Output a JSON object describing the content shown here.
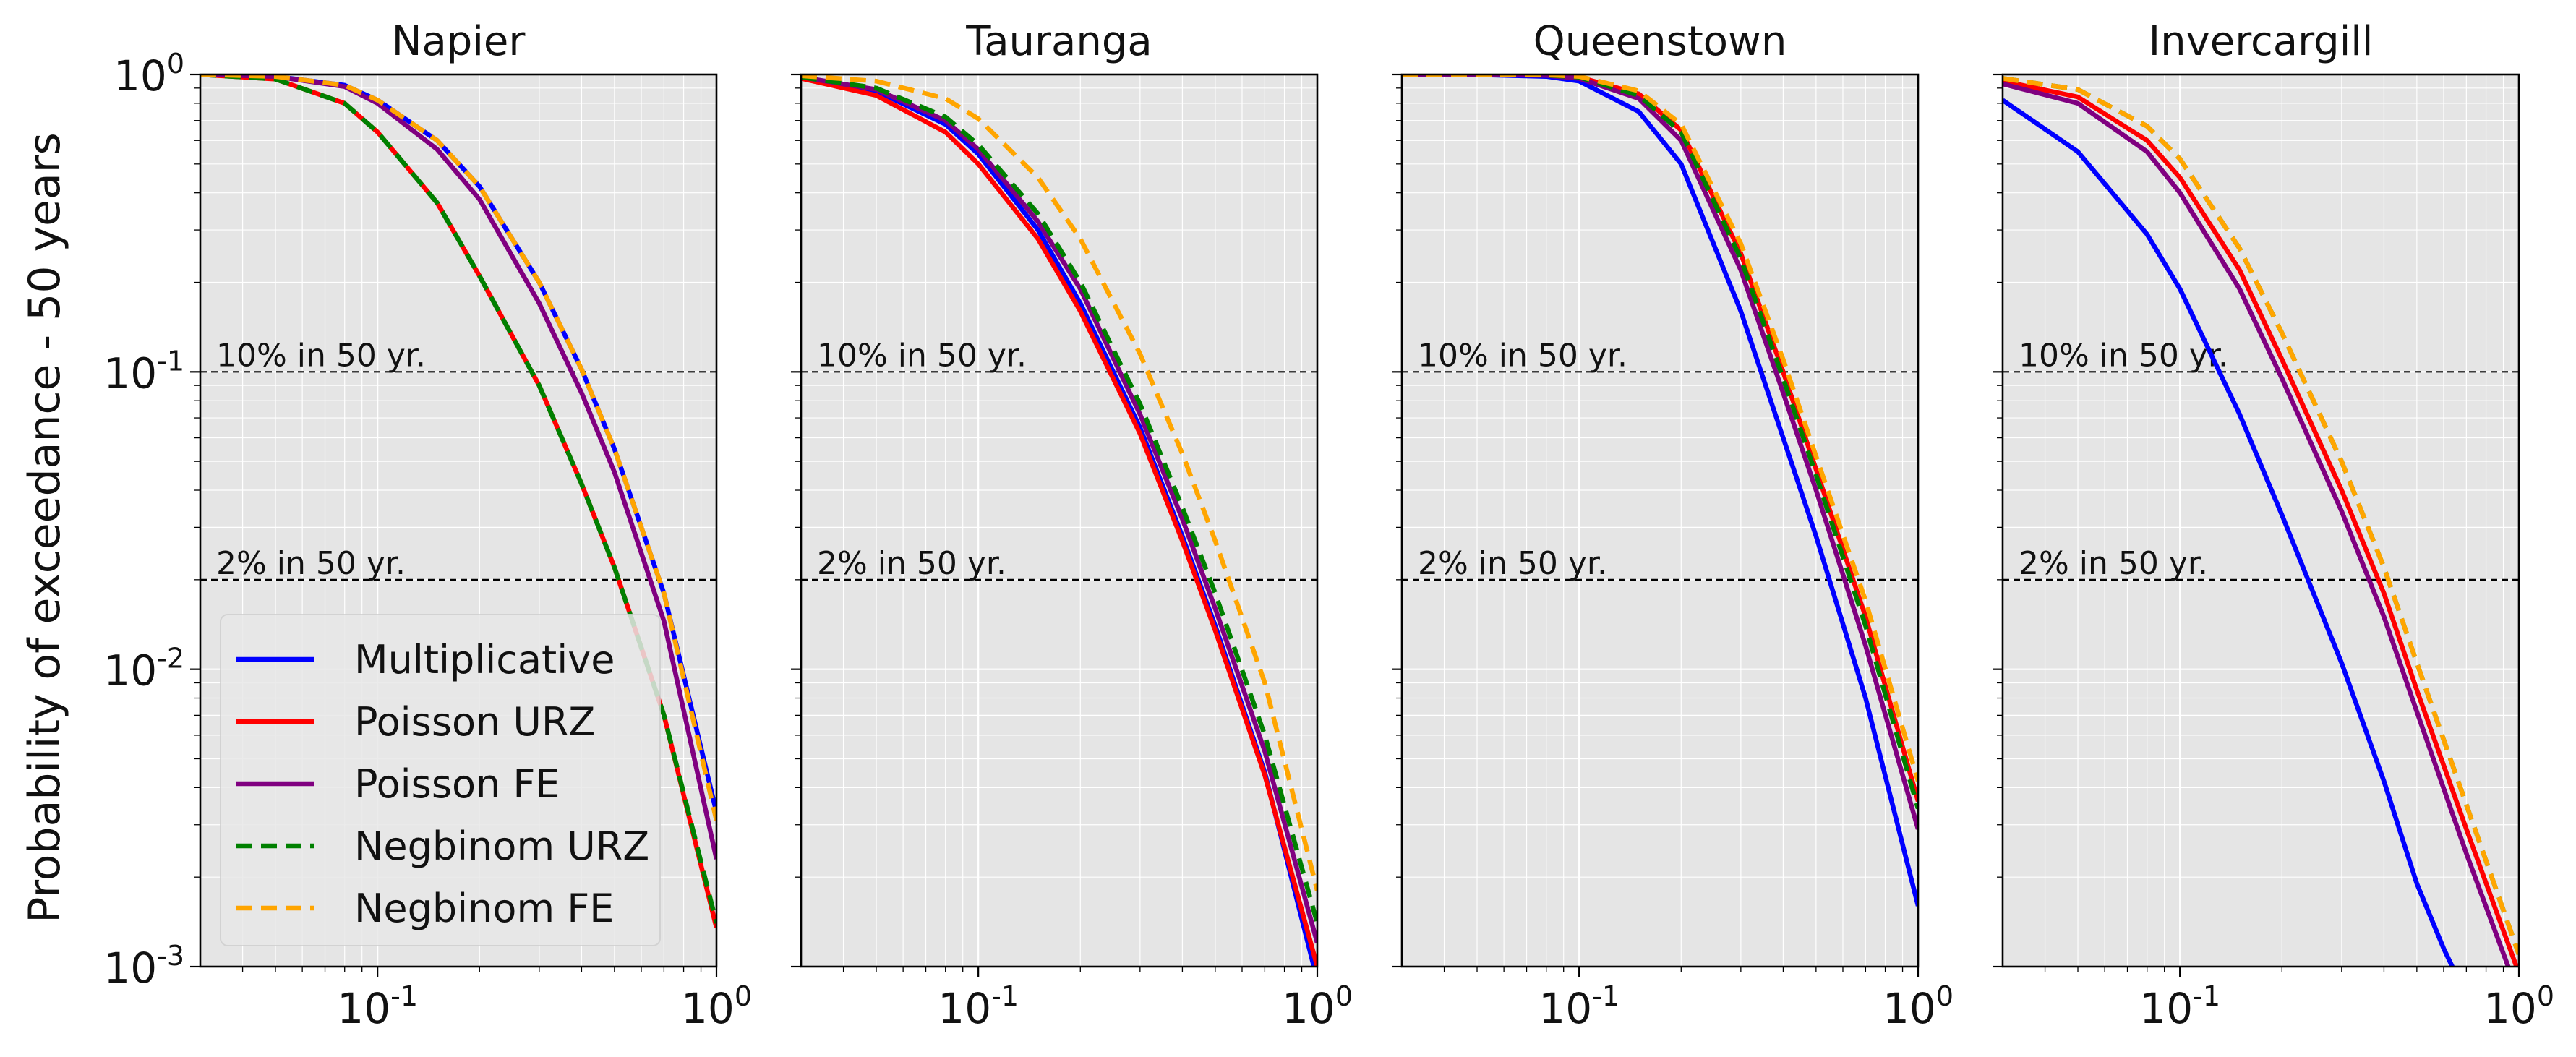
{
  "ylabel": "Probability of exceedance - 50 years",
  "colors": {
    "Multiplicative": "#0000ff",
    "Poisson URZ": "#ff0000",
    "Poisson FE": "#800080",
    "Negbinom URZ": "#008000",
    "Negbinom FE": "#ffa500"
  },
  "legend": [
    {
      "name": "Multiplicative",
      "dashed": false
    },
    {
      "name": "Poisson URZ",
      "dashed": false
    },
    {
      "name": "Poisson FE",
      "dashed": false
    },
    {
      "name": "Negbinom URZ",
      "dashed": true
    },
    {
      "name": "Negbinom FE",
      "dashed": true
    }
  ],
  "chart_data": [
    {
      "type": "line",
      "title": "Napier",
      "xscale": "log",
      "yscale": "log",
      "xlim": [
        0.03,
        1.0
      ],
      "ylim": [
        0.001,
        1.0
      ],
      "reference_lines": [
        {
          "y": 0.1,
          "label": "10% in 50 yr."
        },
        {
          "y": 0.02,
          "label": "2% in 50 yr."
        }
      ],
      "legend_location": "lower-left",
      "series": [
        {
          "name": "Multiplicative",
          "x": [
            0.03,
            0.05,
            0.08,
            0.1,
            0.15,
            0.2,
            0.3,
            0.4,
            0.5,
            0.7,
            1.0
          ],
          "y": [
            1.0,
            0.985,
            0.92,
            0.82,
            0.6,
            0.42,
            0.2,
            0.102,
            0.055,
            0.018,
            0.0033
          ]
        },
        {
          "name": "Poisson URZ",
          "x": [
            0.03,
            0.05,
            0.08,
            0.1,
            0.15,
            0.2,
            0.3,
            0.4,
            0.5,
            0.7,
            1.0
          ],
          "y": [
            1.0,
            0.965,
            0.8,
            0.64,
            0.37,
            0.21,
            0.09,
            0.042,
            0.022,
            0.007,
            0.00135
          ]
        },
        {
          "name": "Poisson FE",
          "x": [
            0.03,
            0.05,
            0.08,
            0.1,
            0.15,
            0.2,
            0.3,
            0.4,
            0.5,
            0.7,
            1.0
          ],
          "y": [
            1.0,
            0.985,
            0.91,
            0.8,
            0.56,
            0.38,
            0.17,
            0.085,
            0.046,
            0.0145,
            0.0023
          ]
        },
        {
          "name": "Negbinom URZ",
          "x": [
            0.03,
            0.05,
            0.08,
            0.1,
            0.15,
            0.2,
            0.3,
            0.4,
            0.5,
            0.7,
            1.0
          ],
          "y": [
            1.0,
            0.965,
            0.8,
            0.64,
            0.37,
            0.21,
            0.09,
            0.042,
            0.022,
            0.007,
            0.0014
          ]
        },
        {
          "name": "Negbinom FE",
          "x": [
            0.03,
            0.05,
            0.08,
            0.1,
            0.15,
            0.2,
            0.3,
            0.4,
            0.5,
            0.7,
            1.0
          ],
          "y": [
            1.0,
            0.985,
            0.92,
            0.82,
            0.6,
            0.42,
            0.2,
            0.102,
            0.055,
            0.018,
            0.0031
          ]
        }
      ]
    },
    {
      "type": "line",
      "title": "Tauranga",
      "xscale": "log",
      "yscale": "log",
      "xlim": [
        0.03,
        1.0
      ],
      "ylim": [
        0.001,
        1.0
      ],
      "reference_lines": [
        {
          "y": 0.1,
          "label": "10% in 50 yr."
        },
        {
          "y": 0.02,
          "label": "2% in 50 yr."
        }
      ],
      "series": [
        {
          "name": "Multiplicative",
          "x": [
            0.03,
            0.05,
            0.08,
            0.1,
            0.15,
            0.2,
            0.3,
            0.4,
            0.5,
            0.7,
            1.0
          ],
          "y": [
            0.98,
            0.88,
            0.68,
            0.54,
            0.3,
            0.17,
            0.065,
            0.028,
            0.014,
            0.0045,
            0.0009
          ]
        },
        {
          "name": "Poisson URZ",
          "x": [
            0.03,
            0.05,
            0.08,
            0.1,
            0.15,
            0.2,
            0.3,
            0.4,
            0.5,
            0.7,
            1.0
          ],
          "y": [
            0.97,
            0.85,
            0.64,
            0.5,
            0.28,
            0.16,
            0.062,
            0.027,
            0.0135,
            0.0044,
            0.001
          ]
        },
        {
          "name": "Poisson FE",
          "x": [
            0.03,
            0.05,
            0.08,
            0.1,
            0.15,
            0.2,
            0.3,
            0.4,
            0.5,
            0.7,
            1.0
          ],
          "y": [
            0.98,
            0.89,
            0.7,
            0.56,
            0.32,
            0.19,
            0.072,
            0.032,
            0.016,
            0.0053,
            0.0012
          ]
        },
        {
          "name": "Negbinom URZ",
          "x": [
            0.03,
            0.05,
            0.08,
            0.1,
            0.15,
            0.2,
            0.3,
            0.4,
            0.5,
            0.7,
            1.0
          ],
          "y": [
            0.98,
            0.9,
            0.72,
            0.58,
            0.34,
            0.2,
            0.078,
            0.035,
            0.018,
            0.006,
            0.0014
          ]
        },
        {
          "name": "Negbinom FE",
          "x": [
            0.03,
            0.05,
            0.08,
            0.1,
            0.15,
            0.2,
            0.3,
            0.4,
            0.5,
            0.7,
            1.0
          ],
          "y": [
            0.99,
            0.95,
            0.83,
            0.71,
            0.45,
            0.28,
            0.115,
            0.053,
            0.027,
            0.009,
            0.0018
          ]
        }
      ]
    },
    {
      "type": "line",
      "title": "Queenstown",
      "xscale": "log",
      "yscale": "log",
      "xlim": [
        0.03,
        1.0
      ],
      "ylim": [
        0.001,
        1.0
      ],
      "reference_lines": [
        {
          "y": 0.1,
          "label": "10% in 50 yr."
        },
        {
          "y": 0.02,
          "label": "2% in 50 yr."
        }
      ],
      "series": [
        {
          "name": "Multiplicative",
          "x": [
            0.03,
            0.05,
            0.08,
            0.1,
            0.15,
            0.2,
            0.3,
            0.4,
            0.5,
            0.7,
            1.0
          ],
          "y": [
            1.0,
            0.999,
            0.985,
            0.95,
            0.75,
            0.5,
            0.16,
            0.06,
            0.028,
            0.008,
            0.0016
          ]
        },
        {
          "name": "Poisson URZ",
          "x": [
            0.03,
            0.05,
            0.08,
            0.1,
            0.15,
            0.2,
            0.3,
            0.4,
            0.5,
            0.7,
            1.0
          ],
          "y": [
            1.0,
            0.9995,
            0.995,
            0.98,
            0.86,
            0.65,
            0.25,
            0.1,
            0.047,
            0.015,
            0.0036
          ]
        },
        {
          "name": "Poisson FE",
          "x": [
            0.03,
            0.05,
            0.08,
            0.1,
            0.15,
            0.2,
            0.3,
            0.4,
            0.5,
            0.7,
            1.0
          ],
          "y": [
            1.0,
            0.9995,
            0.993,
            0.97,
            0.83,
            0.6,
            0.22,
            0.085,
            0.04,
            0.012,
            0.0029
          ]
        },
        {
          "name": "Negbinom URZ",
          "x": [
            0.03,
            0.05,
            0.08,
            0.1,
            0.15,
            0.2,
            0.3,
            0.4,
            0.5,
            0.7,
            1.0
          ],
          "y": [
            1.0,
            0.9995,
            0.995,
            0.98,
            0.85,
            0.64,
            0.24,
            0.095,
            0.045,
            0.014,
            0.0034
          ]
        },
        {
          "name": "Negbinom FE",
          "x": [
            0.03,
            0.05,
            0.08,
            0.1,
            0.15,
            0.2,
            0.3,
            0.4,
            0.5,
            0.7,
            1.0
          ],
          "y": [
            1.0,
            0.9997,
            0.997,
            0.985,
            0.88,
            0.68,
            0.27,
            0.11,
            0.052,
            0.017,
            0.0042
          ]
        }
      ]
    },
    {
      "type": "line",
      "title": "Invercargill",
      "xscale": "log",
      "yscale": "log",
      "xlim": [
        0.03,
        1.0
      ],
      "ylim": [
        0.001,
        1.0
      ],
      "reference_lines": [
        {
          "y": 0.1,
          "label": "10% in 50 yr."
        },
        {
          "y": 0.02,
          "label": "2% in 50 yr."
        }
      ],
      "series": [
        {
          "name": "Multiplicative",
          "x": [
            0.03,
            0.05,
            0.08,
            0.1,
            0.15,
            0.2,
            0.3,
            0.4,
            0.5,
            0.6,
            0.65
          ],
          "y": [
            0.82,
            0.55,
            0.29,
            0.19,
            0.072,
            0.033,
            0.0105,
            0.0042,
            0.0019,
            0.00115,
            0.00095
          ]
        },
        {
          "name": "Poisson URZ",
          "x": [
            0.03,
            0.05,
            0.08,
            0.1,
            0.15,
            0.2,
            0.3,
            0.4,
            0.5,
            0.7,
            1.0
          ],
          "y": [
            0.95,
            0.84,
            0.6,
            0.45,
            0.22,
            0.11,
            0.04,
            0.018,
            0.0085,
            0.0029,
            0.00095
          ]
        },
        {
          "name": "Poisson FE",
          "x": [
            0.03,
            0.05,
            0.08,
            0.1,
            0.15,
            0.2,
            0.3,
            0.4,
            0.5,
            0.7,
            1.0
          ],
          "y": [
            0.93,
            0.8,
            0.55,
            0.4,
            0.19,
            0.095,
            0.034,
            0.015,
            0.0072,
            0.0024,
            0.0008
          ]
        },
        {
          "name": "Negbinom URZ",
          "x": [
            0.03,
            0.05,
            0.08,
            0.1,
            0.15,
            0.2,
            0.3,
            0.4,
            0.5,
            0.7,
            1.0
          ],
          "y": [
            0.97,
            0.89,
            0.67,
            0.52,
            0.26,
            0.135,
            0.05,
            0.022,
            0.0105,
            0.0035,
            0.0011
          ]
        },
        {
          "name": "Negbinom FE",
          "x": [
            0.03,
            0.05,
            0.08,
            0.1,
            0.15,
            0.2,
            0.3,
            0.4,
            0.5,
            0.7,
            1.0
          ],
          "y": [
            0.97,
            0.89,
            0.67,
            0.52,
            0.26,
            0.135,
            0.05,
            0.022,
            0.0105,
            0.0035,
            0.0011
          ]
        }
      ]
    }
  ]
}
